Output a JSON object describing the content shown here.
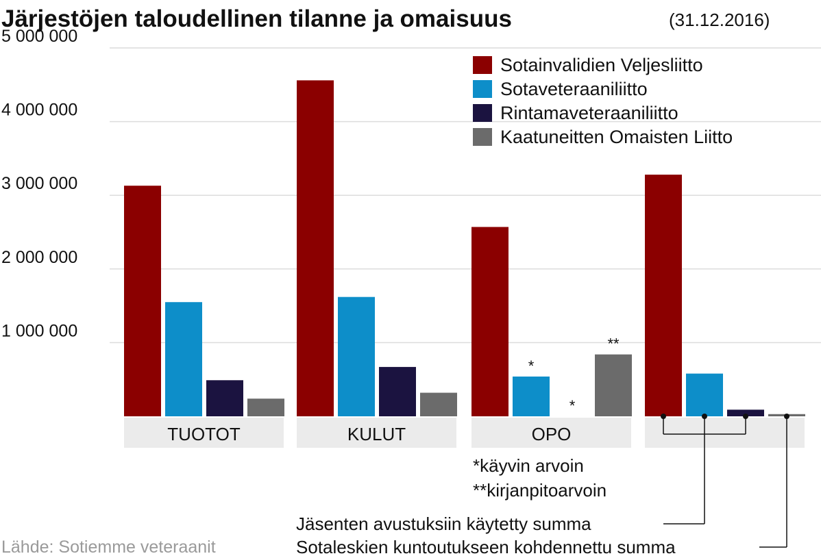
{
  "chart_data": {
    "type": "bar",
    "title": "Järjestöjen taloudellinen tilanne ja omaisuus",
    "subtitle": "(31.12.2016)",
    "categories": [
      "TUOTOT",
      "KULUT",
      "OPO",
      ""
    ],
    "ylim": [
      0,
      5000000
    ],
    "y_ticks": [
      {
        "value": 1000000,
        "label": "1 000 000"
      },
      {
        "value": 2000000,
        "label": "2 000 000"
      },
      {
        "value": 3000000,
        "label": "3 000 000"
      },
      {
        "value": 4000000,
        "label": "4 000 000"
      },
      {
        "value": 5000000,
        "label": "5 000 000"
      }
    ],
    "grid": true,
    "legend_position": "top-right",
    "series": [
      {
        "name": "Sotainvalidien Veljesliitto",
        "color": "#8b0000",
        "values": [
          3130000,
          4560000,
          2570000,
          3280000
        ]
      },
      {
        "name": "Sotaveteraaniliitto",
        "color": "#0d8ec9",
        "values": [
          1550000,
          1620000,
          540000,
          580000
        ]
      },
      {
        "name": "Rintamaveteraaniliitto",
        "color": "#1b1340",
        "values": [
          490000,
          670000,
          0,
          90000
        ]
      },
      {
        "name": "Kaatuneitten Omaisten Liitto",
        "color": "#6b6b6b",
        "values": [
          240000,
          320000,
          840000,
          30000
        ]
      }
    ],
    "bar_marks": [
      {
        "category": 2,
        "series": 1,
        "text": "*"
      },
      {
        "category": 2,
        "series": 2,
        "text": "*"
      },
      {
        "category": 2,
        "series": 3,
        "text": "**"
      }
    ],
    "notes": [
      "*käyvin arvoin",
      "**kirjanpitoarvoin"
    ],
    "callouts": [
      {
        "text": "Jäsenten avustuksiin käytetty summa",
        "series": [
          0,
          1,
          2
        ]
      },
      {
        "text": "Sotaleskien kuntoutukseen kohdennettu summa",
        "series": [
          3
        ]
      }
    ],
    "source": "Lähde: Sotiemme veteraanit"
  }
}
